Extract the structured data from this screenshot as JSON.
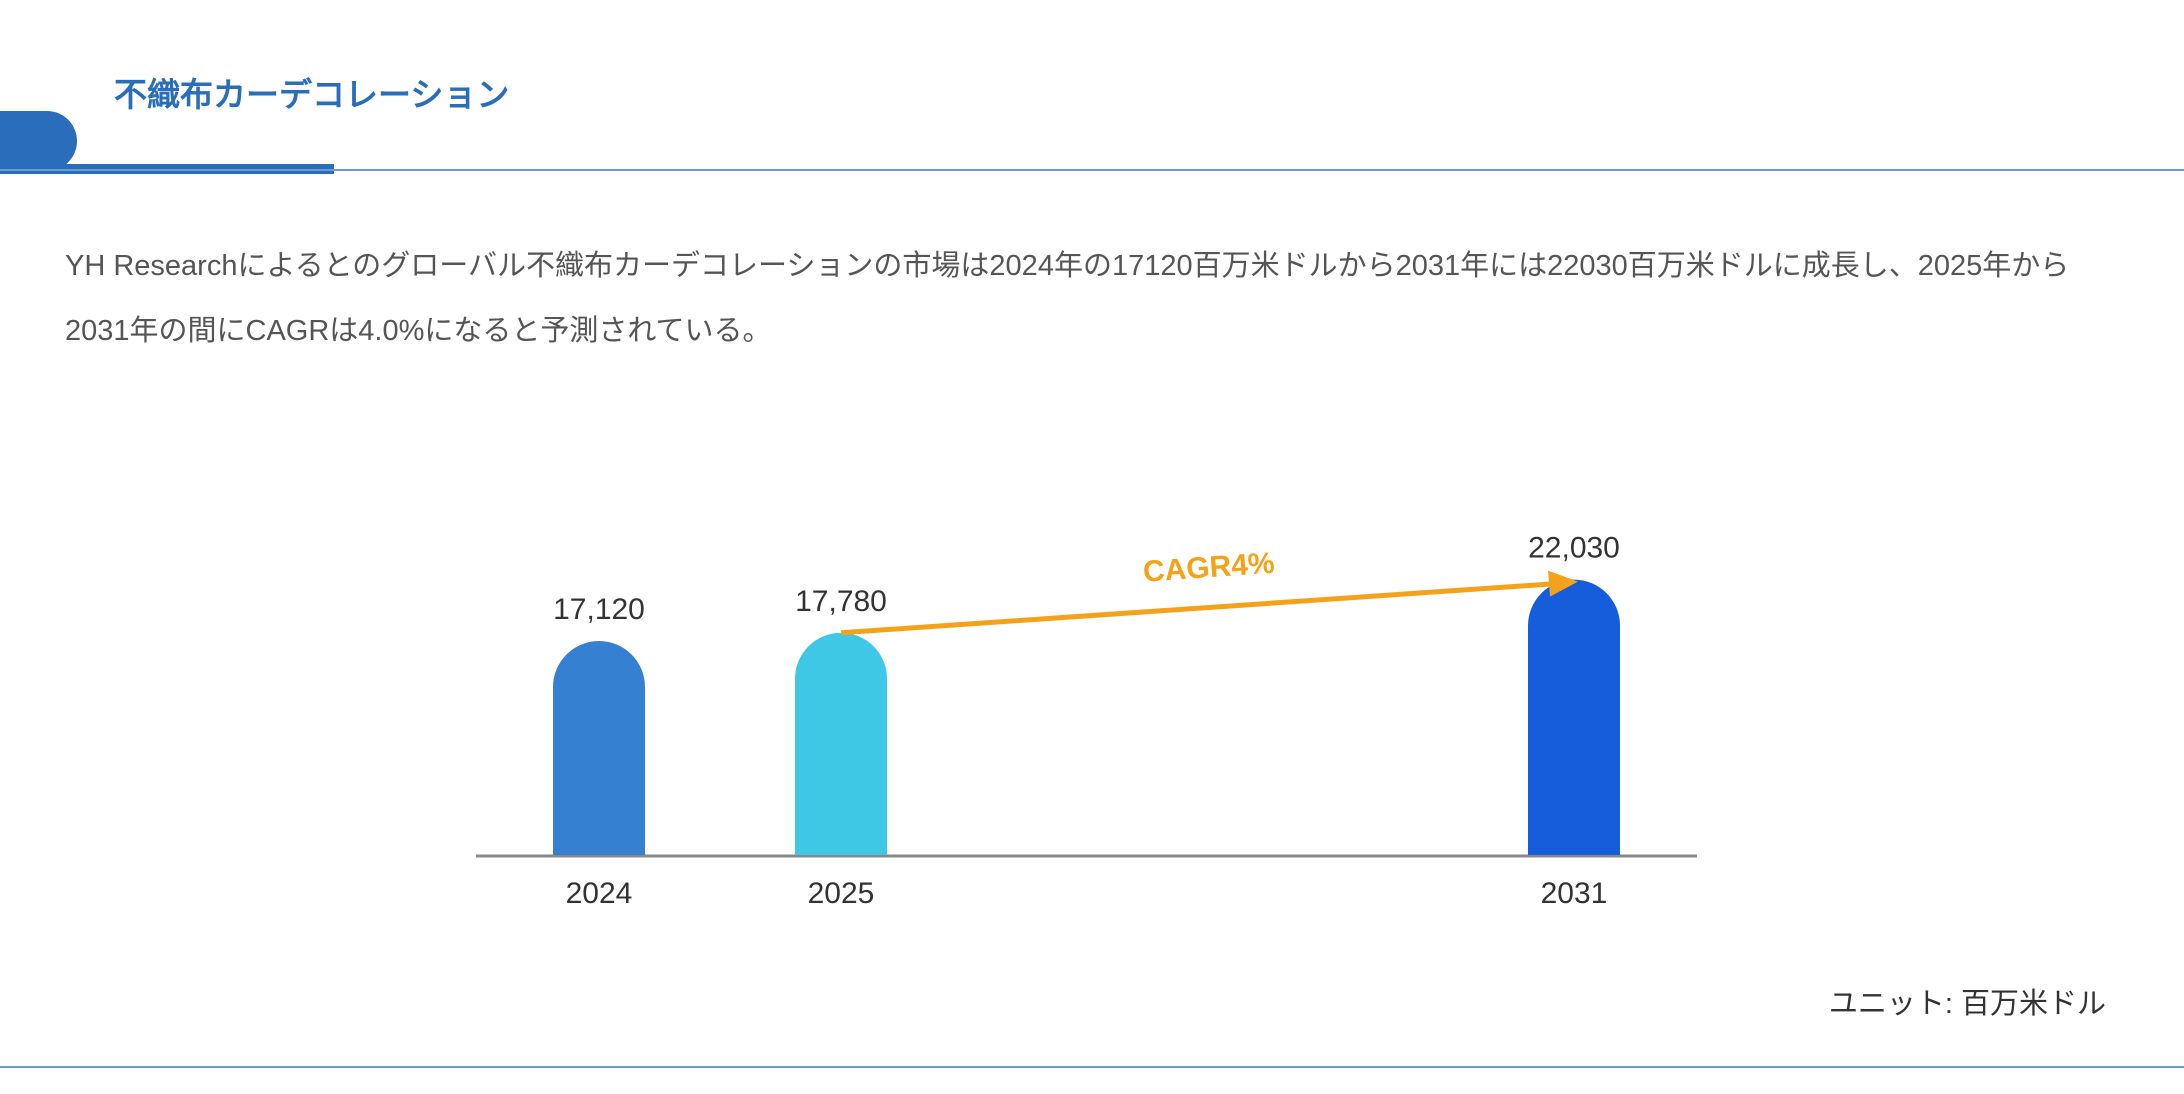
{
  "header": {
    "title": "不織布カーデコレーション"
  },
  "description": "YH Researchによるとのグローバル不織布カーデコレーションの市場は2024年の17120百万米ドルから2031年には22030百万米ドルに成長し、2025年から2031年の間にCAGRは4.0%になると予測されている。",
  "chart_data": {
    "type": "bar",
    "categories": [
      "2024",
      "2025",
      "2031"
    ],
    "values": [
      17120,
      17780,
      22030
    ],
    "value_labels": [
      "17,120",
      "17,780",
      "22,030"
    ],
    "colors": [
      "#3580d0",
      "#3ec8e6",
      "#165ddc"
    ],
    "annotation": {
      "text": "CAGR4%",
      "from": "2025",
      "to": "2031",
      "color": "#f5a21b"
    },
    "unit_label": "ユニット: 百万米ドル",
    "ylim": [
      0,
      22030
    ],
    "grid": false
  }
}
